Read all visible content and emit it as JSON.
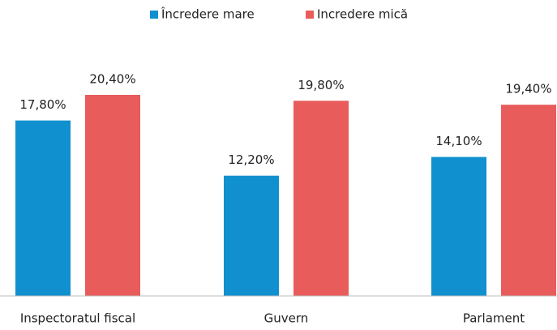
{
  "chart_data": {
    "type": "bar",
    "categories": [
      "Inspectoratul fiscal",
      "Guvern",
      "Parlament"
    ],
    "series": [
      {
        "name": "Încredere mare",
        "color": "#1190cf",
        "values": [
          17.8,
          12.2,
          14.1
        ],
        "value_labels": [
          "17,80%",
          "12,20%",
          "14,10%"
        ]
      },
      {
        "name": "Incredere mică",
        "color": "#e95c5c",
        "values": [
          20.4,
          19.8,
          19.4
        ],
        "value_labels": [
          "20,40%",
          "19,80%",
          "19,40%"
        ]
      }
    ],
    "legend": "top"
  }
}
